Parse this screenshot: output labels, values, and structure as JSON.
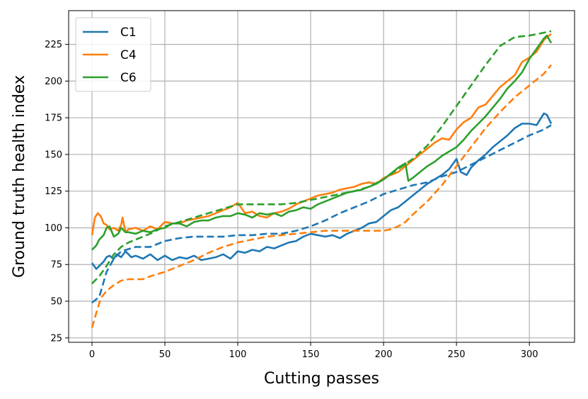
{
  "chart_data": {
    "type": "line",
    "title": "",
    "xlabel": "Cutting passes",
    "ylabel": "Ground truth health index",
    "xlim": [
      -16,
      331
    ],
    "ylim": [
      22,
      248
    ],
    "xticks": [
      0,
      50,
      100,
      150,
      200,
      250,
      300
    ],
    "yticks": [
      25,
      50,
      75,
      100,
      125,
      150,
      175,
      200,
      225
    ],
    "grid": true,
    "legend_position": "top-left",
    "legend_entries": [
      "C1",
      "C4",
      "C6"
    ],
    "series": [
      {
        "name": "C1",
        "color": "#1f77b4",
        "style": "solid",
        "x": [
          0,
          3,
          5,
          8,
          10,
          12,
          15,
          17,
          20,
          23,
          27,
          30,
          35,
          40,
          45,
          50,
          55,
          60,
          65,
          70,
          75,
          80,
          85,
          90,
          95,
          100,
          105,
          110,
          115,
          120,
          125,
          130,
          135,
          140,
          145,
          150,
          155,
          160,
          165,
          170,
          175,
          180,
          185,
          190,
          195,
          200,
          205,
          210,
          215,
          220,
          225,
          230,
          235,
          240,
          245,
          250,
          253,
          257,
          260,
          265,
          270,
          275,
          280,
          285,
          290,
          295,
          300,
          305,
          310,
          312,
          315
        ],
        "y": [
          76,
          72,
          74,
          77,
          80,
          81,
          79,
          82,
          80,
          84,
          80,
          81,
          79,
          82,
          78,
          81,
          78,
          80,
          79,
          81,
          78,
          79,
          80,
          82,
          79,
          84,
          83,
          85,
          84,
          87,
          86,
          88,
          90,
          91,
          94,
          96,
          95,
          94,
          95,
          93,
          96,
          98,
          100,
          103,
          104,
          108,
          112,
          114,
          118,
          122,
          126,
          130,
          133,
          136,
          140,
          147,
          138,
          136,
          141,
          146,
          150,
          155,
          159,
          163,
          168,
          171,
          171,
          170,
          178,
          177,
          171
        ]
      },
      {
        "name": "C1",
        "color": "#1f77b4",
        "style": "dashed",
        "x": [
          0,
          5,
          10,
          15,
          20,
          30,
          40,
          50,
          60,
          70,
          80,
          90,
          100,
          110,
          120,
          130,
          140,
          150,
          160,
          170,
          180,
          190,
          200,
          210,
          220,
          230,
          240,
          250,
          260,
          270,
          280,
          290,
          300,
          310,
          315
        ],
        "y": [
          49,
          53,
          70,
          79,
          84,
          87,
          87,
          91,
          93,
          94,
          94,
          94,
          95,
          95,
          96,
          96,
          98,
          101,
          105,
          110,
          114,
          118,
          123,
          126,
          129,
          131,
          135,
          138,
          143,
          148,
          153,
          158,
          163,
          167,
          170
        ]
      },
      {
        "name": "C4",
        "color": "#ff7f0e",
        "style": "solid",
        "x": [
          0,
          2,
          4,
          6,
          8,
          10,
          12,
          15,
          18,
          20,
          21,
          23,
          25,
          30,
          35,
          40,
          45,
          50,
          55,
          60,
          65,
          70,
          75,
          80,
          85,
          90,
          95,
          100,
          105,
          110,
          115,
          120,
          125,
          130,
          135,
          140,
          145,
          150,
          155,
          160,
          165,
          170,
          175,
          180,
          185,
          190,
          195,
          200,
          205,
          210,
          215,
          220,
          225,
          230,
          235,
          240,
          245,
          250,
          255,
          260,
          265,
          270,
          275,
          280,
          285,
          290,
          295,
          300,
          305,
          310,
          312,
          315
        ],
        "y": [
          95,
          107,
          110,
          108,
          103,
          102,
          99,
          100,
          98,
          102,
          107,
          97,
          99,
          100,
          98,
          101,
          99,
          104,
          103,
          103,
          105,
          106,
          107,
          108,
          110,
          112,
          114,
          117,
          110,
          111,
          108,
          107,
          110,
          111,
          113,
          116,
          118,
          120,
          122,
          123,
          124,
          126,
          127,
          128,
          130,
          131,
          130,
          134,
          136,
          138,
          142,
          146,
          150,
          154,
          158,
          161,
          160,
          167,
          172,
          175,
          182,
          184,
          190,
          196,
          200,
          204,
          213,
          216,
          220,
          228,
          230,
          232
        ]
      },
      {
        "name": "C4",
        "color": "#ff7f0e",
        "style": "dashed",
        "x": [
          0,
          3,
          6,
          10,
          15,
          20,
          25,
          30,
          35,
          40,
          50,
          60,
          70,
          80,
          90,
          100,
          110,
          120,
          130,
          140,
          150,
          160,
          170,
          180,
          190,
          200,
          205,
          210,
          215,
          220,
          230,
          240,
          250,
          260,
          270,
          280,
          290,
          300,
          310,
          315
        ],
        "y": [
          32,
          42,
          52,
          57,
          61,
          64,
          65,
          65,
          65,
          67,
          70,
          74,
          78,
          83,
          87,
          90,
          92,
          94,
          95,
          96,
          97,
          98,
          98,
          98,
          98,
          98,
          99,
          101,
          104,
          109,
          118,
          129,
          142,
          155,
          168,
          179,
          189,
          197,
          205,
          211
        ]
      },
      {
        "name": "C6",
        "color": "#2ca02c",
        "style": "solid",
        "x": [
          0,
          3,
          5,
          8,
          10,
          12,
          15,
          18,
          20,
          23,
          25,
          30,
          35,
          40,
          45,
          50,
          55,
          60,
          65,
          70,
          75,
          80,
          85,
          90,
          95,
          100,
          105,
          110,
          115,
          120,
          125,
          130,
          135,
          140,
          145,
          150,
          155,
          160,
          165,
          170,
          175,
          180,
          185,
          190,
          195,
          200,
          205,
          210,
          215,
          217,
          220,
          225,
          230,
          235,
          240,
          245,
          250,
          255,
          260,
          265,
          270,
          275,
          280,
          285,
          290,
          295,
          300,
          305,
          310,
          312,
          315
        ],
        "y": [
          85,
          88,
          92,
          95,
          100,
          101,
          94,
          96,
          100,
          97,
          97,
          96,
          98,
          97,
          99,
          100,
          103,
          103,
          101,
          104,
          105,
          105,
          107,
          108,
          108,
          110,
          109,
          107,
          110,
          109,
          110,
          108,
          111,
          112,
          114,
          113,
          116,
          118,
          120,
          122,
          124,
          125,
          126,
          128,
          130,
          133,
          137,
          141,
          144,
          132,
          134,
          138,
          142,
          145,
          149,
          152,
          155,
          160,
          166,
          171,
          176,
          182,
          188,
          195,
          200,
          206,
          215,
          222,
          229,
          231,
          226
        ]
      },
      {
        "name": "C6",
        "color": "#2ca02c",
        "style": "dashed",
        "x": [
          0,
          5,
          10,
          15,
          20,
          25,
          30,
          40,
          50,
          60,
          70,
          80,
          90,
          100,
          110,
          120,
          130,
          140,
          150,
          160,
          170,
          180,
          190,
          200,
          210,
          220,
          230,
          240,
          250,
          260,
          270,
          280,
          290,
          300,
          310,
          315
        ],
        "y": [
          62,
          67,
          74,
          82,
          87,
          90,
          92,
          96,
          101,
          104,
          107,
          110,
          113,
          116,
          116,
          116,
          116,
          117,
          119,
          121,
          123,
          125,
          128,
          133,
          140,
          147,
          156,
          169,
          183,
          197,
          211,
          224,
          230,
          231,
          233,
          234
        ]
      }
    ]
  }
}
